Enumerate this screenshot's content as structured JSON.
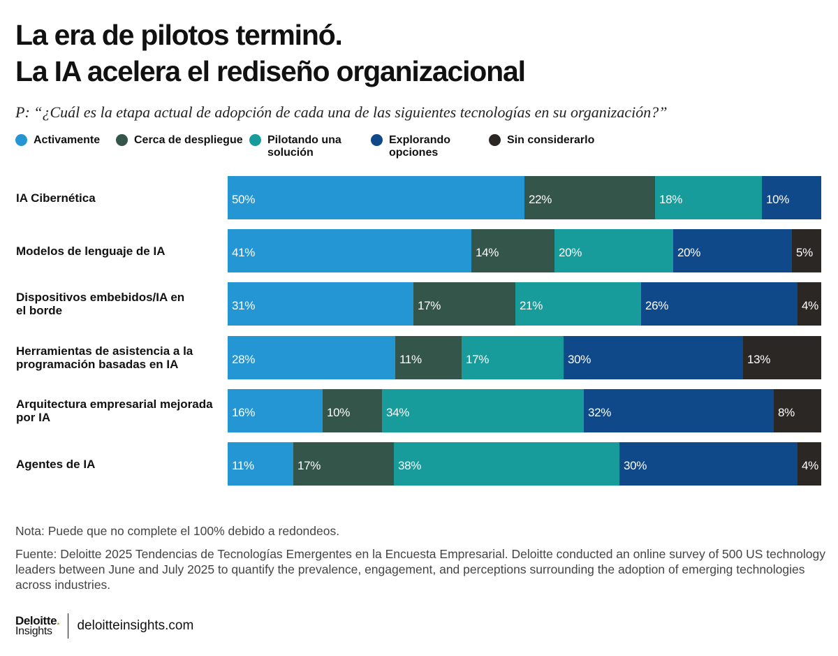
{
  "title": {
    "line1": "La era de pilotos terminó.",
    "line2": "La IA acelera el rediseño organizacional"
  },
  "question": "P: “¿Cuál es la etapa actual de adopción de cada una de las siguientes tecnologías en su organización?”",
  "legend": [
    {
      "label": "Activamente",
      "color": "#2596d4"
    },
    {
      "label": "Cerca de despliegue",
      "color": "#33554a"
    },
    {
      "label": "Pilotando una solución",
      "color": "#189b9b"
    },
    {
      "label": "Explorando opciones",
      "color": "#10498a"
    },
    {
      "label": "Sin considerarlo",
      "color": "#2b2725"
    }
  ],
  "chart_data": {
    "type": "bar",
    "orientation": "horizontal",
    "stacked": true,
    "categories": [
      "IA Cibernética",
      "Modelos de lenguaje de IA",
      "Dispositivos embebidos/IA en el borde",
      "Herramientas de asistencia a la programación basadas en IA",
      "Arquitectura empresarial mejorada por IA",
      "Agentes de IA"
    ],
    "series": [
      {
        "name": "Activamente",
        "color": "#2596d4",
        "values": [
          50,
          41,
          31,
          28,
          16,
          11
        ]
      },
      {
        "name": "Cerca de despliegue",
        "color": "#33554a",
        "values": [
          22,
          14,
          17,
          11,
          10,
          17
        ]
      },
      {
        "name": "Pilotando una solución",
        "color": "#189b9b",
        "values": [
          18,
          20,
          21,
          17,
          34,
          38
        ]
      },
      {
        "name": "Explorando opciones",
        "color": "#10498a",
        "values": [
          10,
          20,
          26,
          30,
          32,
          30
        ]
      },
      {
        "name": "Sin considerarlo",
        "color": "#2b2725",
        "values": [
          0,
          5,
          4,
          13,
          8,
          4
        ]
      }
    ],
    "value_suffix": "%",
    "xlim": [
      0,
      100
    ],
    "legend_position": "top",
    "grid": false
  },
  "notes": {
    "nota": "Nota: Puede que no complete el 100% debido a redondeos.",
    "fuente": "Fuente: Deloitte 2025 Tendencias de Tecnologías Emergentes en la Encuesta Empresarial. Deloitte conducted an online survey of 500 US technology leaders between June and July 2025 to quantify the prevalence, engagement, and perceptions surrounding the adoption of emerging technologies across industries."
  },
  "footer": {
    "brand_name": "Deloitte",
    "brand_dot": ".",
    "brand_sub": "Insights",
    "site": "deloitteinsights.com"
  }
}
